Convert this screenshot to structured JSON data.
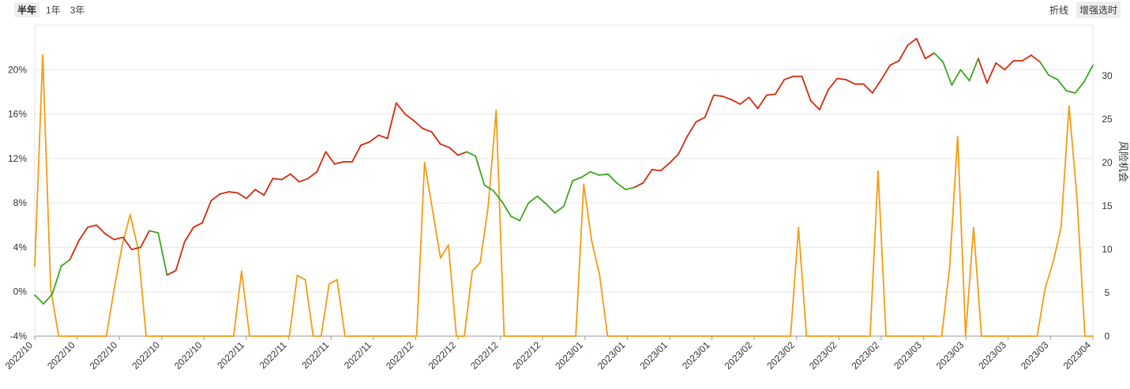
{
  "toolbar": {
    "ranges": [
      "半年",
      "1年",
      "3年"
    ],
    "active_range": "半年",
    "modes": [
      "折线",
      "增强选时"
    ],
    "active_mode": "增强选时"
  },
  "colors": {
    "up": "#d42a0e",
    "down": "#3da51f",
    "opportunity": "#f39c12",
    "grid": "#e6e6e6"
  },
  "chart_data": {
    "type": "line",
    "title": "",
    "xlabel": "",
    "ylabel_left": "",
    "ylabel_right": "风险机会",
    "x_tick_labels": [
      "2022/10",
      "2022/10",
      "2022/10",
      "2022/10",
      "2022/10",
      "2022/11",
      "2022/11",
      "2022/11",
      "2022/11",
      "2022/12",
      "2022/12",
      "2022/12",
      "2022/12",
      "2023/01",
      "2023/01",
      "2023/01",
      "2023/01",
      "2023/02",
      "2023/02",
      "2023/02",
      "2023/02",
      "2023/03",
      "2023/03",
      "2023/03",
      "2023/03",
      "2023/04"
    ],
    "y_left": {
      "ticks": [
        "-4%",
        "0%",
        "4%",
        "8%",
        "12%",
        "16%",
        "20%"
      ],
      "ylim": [
        -4,
        24
      ]
    },
    "y_right": {
      "ticks": [
        "0",
        "5",
        "10",
        "15",
        "20",
        "25",
        "30"
      ],
      "ylim": [
        0,
        35.8
      ]
    },
    "series": [
      {
        "role": "return_pct",
        "points": [
          [
            0,
            -0.3,
            "d"
          ],
          [
            1,
            -1.1,
            "d"
          ],
          [
            2,
            -0.2,
            "d"
          ],
          [
            3,
            2.3,
            "d"
          ],
          [
            4,
            2.9,
            "d"
          ],
          [
            5,
            4.6,
            "u"
          ],
          [
            6,
            5.8,
            "u"
          ],
          [
            7,
            6.0,
            "u"
          ],
          [
            8,
            5.2,
            "u"
          ],
          [
            9,
            4.7,
            "u"
          ],
          [
            10,
            4.9,
            "u"
          ],
          [
            11,
            3.8,
            "u"
          ],
          [
            12,
            4.0,
            "u"
          ],
          [
            13,
            5.5,
            "u"
          ],
          [
            14,
            5.3,
            "d"
          ],
          [
            15,
            1.5,
            "d"
          ],
          [
            16,
            1.9,
            "u"
          ],
          [
            17,
            4.5,
            "u"
          ],
          [
            18,
            5.8,
            "u"
          ],
          [
            19,
            6.2,
            "u"
          ],
          [
            20,
            8.2,
            "u"
          ],
          [
            21,
            8.8,
            "u"
          ],
          [
            22,
            9.0,
            "u"
          ],
          [
            23,
            8.9,
            "u"
          ],
          [
            24,
            8.4,
            "u"
          ],
          [
            25,
            9.2,
            "u"
          ],
          [
            26,
            8.7,
            "u"
          ],
          [
            27,
            10.2,
            "u"
          ],
          [
            28,
            10.1,
            "u"
          ],
          [
            29,
            10.6,
            "u"
          ],
          [
            30,
            9.9,
            "u"
          ],
          [
            31,
            10.2,
            "u"
          ],
          [
            32,
            10.8,
            "u"
          ],
          [
            33,
            12.6,
            "u"
          ],
          [
            34,
            11.5,
            "u"
          ],
          [
            35,
            11.7,
            "u"
          ],
          [
            36,
            11.7,
            "u"
          ],
          [
            37,
            13.2,
            "u"
          ],
          [
            38,
            13.5,
            "u"
          ],
          [
            39,
            14.1,
            "u"
          ],
          [
            40,
            13.8,
            "u"
          ],
          [
            41,
            17.0,
            "u"
          ],
          [
            42,
            16.0,
            "u"
          ],
          [
            43,
            15.4,
            "u"
          ],
          [
            44,
            14.7,
            "u"
          ],
          [
            45,
            14.4,
            "u"
          ],
          [
            46,
            13.3,
            "u"
          ],
          [
            47,
            13.0,
            "u"
          ],
          [
            48,
            12.3,
            "u"
          ],
          [
            49,
            12.6,
            "u"
          ],
          [
            50,
            12.2,
            "d"
          ],
          [
            51,
            9.6,
            "d"
          ],
          [
            52,
            9.1,
            "d"
          ],
          [
            53,
            8.1,
            "d"
          ],
          [
            54,
            6.8,
            "d"
          ],
          [
            55,
            6.4,
            "d"
          ],
          [
            56,
            8.0,
            "d"
          ],
          [
            57,
            8.6,
            "d"
          ],
          [
            58,
            7.9,
            "d"
          ],
          [
            59,
            7.1,
            "d"
          ],
          [
            60,
            7.7,
            "d"
          ],
          [
            61,
            10.0,
            "d"
          ],
          [
            62,
            10.3,
            "d"
          ],
          [
            63,
            10.8,
            "d"
          ],
          [
            64,
            10.5,
            "d"
          ],
          [
            65,
            10.6,
            "d"
          ],
          [
            66,
            9.8,
            "d"
          ],
          [
            67,
            9.2,
            "d"
          ],
          [
            68,
            9.4,
            "d"
          ],
          [
            69,
            9.8,
            "u"
          ],
          [
            70,
            11.0,
            "u"
          ],
          [
            71,
            10.9,
            "u"
          ],
          [
            72,
            11.6,
            "u"
          ],
          [
            73,
            12.4,
            "u"
          ],
          [
            74,
            14.0,
            "u"
          ],
          [
            75,
            15.3,
            "u"
          ],
          [
            76,
            15.7,
            "u"
          ],
          [
            77,
            17.7,
            "u"
          ],
          [
            78,
            17.6,
            "u"
          ],
          [
            79,
            17.3,
            "u"
          ],
          [
            80,
            16.9,
            "u"
          ],
          [
            81,
            17.5,
            "u"
          ],
          [
            82,
            16.5,
            "u"
          ],
          [
            83,
            17.7,
            "u"
          ],
          [
            84,
            17.8,
            "u"
          ],
          [
            85,
            19.1,
            "u"
          ],
          [
            86,
            19.4,
            "u"
          ],
          [
            87,
            19.4,
            "u"
          ],
          [
            88,
            17.2,
            "u"
          ],
          [
            89,
            16.4,
            "u"
          ],
          [
            90,
            18.2,
            "u"
          ],
          [
            91,
            19.2,
            "u"
          ],
          [
            92,
            19.1,
            "u"
          ],
          [
            93,
            18.7,
            "u"
          ],
          [
            94,
            18.7,
            "u"
          ],
          [
            95,
            17.9,
            "u"
          ],
          [
            96,
            19.1,
            "u"
          ],
          [
            97,
            20.4,
            "u"
          ],
          [
            98,
            20.8,
            "u"
          ],
          [
            99,
            22.2,
            "u"
          ],
          [
            100,
            22.8,
            "u"
          ],
          [
            101,
            21.0,
            "u"
          ],
          [
            102,
            21.5,
            "u"
          ],
          [
            103,
            20.7,
            "d"
          ],
          [
            104,
            18.6,
            "d"
          ],
          [
            105,
            20.0,
            "d"
          ],
          [
            106,
            19.0,
            "d"
          ],
          [
            107,
            21.0,
            "d"
          ],
          [
            108,
            18.8,
            "u"
          ],
          [
            109,
            20.6,
            "u"
          ],
          [
            110,
            20.0,
            "u"
          ],
          [
            111,
            20.8,
            "u"
          ],
          [
            112,
            20.8,
            "u"
          ],
          [
            113,
            21.3,
            "u"
          ],
          [
            114,
            20.7,
            "u"
          ],
          [
            115,
            19.5,
            "d"
          ],
          [
            116,
            19.1,
            "d"
          ],
          [
            117,
            18.1,
            "d"
          ],
          [
            118,
            17.9,
            "d"
          ],
          [
            119,
            18.9,
            "d"
          ],
          [
            120,
            20.4,
            "d"
          ]
        ]
      },
      {
        "name": "风险机会",
        "role": "risk_opportunity",
        "points": [
          [
            0,
            8
          ],
          [
            1,
            32.4
          ],
          [
            2,
            5.5
          ],
          [
            3,
            0
          ],
          [
            4,
            0
          ],
          [
            5,
            0
          ],
          [
            6,
            0
          ],
          [
            7,
            0
          ],
          [
            8,
            0
          ],
          [
            9,
            0
          ],
          [
            10,
            5.5
          ],
          [
            11,
            10.5
          ],
          [
            12,
            14
          ],
          [
            13,
            10
          ],
          [
            14,
            0
          ],
          [
            15,
            0
          ],
          [
            16,
            0
          ],
          [
            17,
            0
          ],
          [
            18,
            0
          ],
          [
            19,
            0
          ],
          [
            20,
            0
          ],
          [
            21,
            0
          ],
          [
            22,
            0
          ],
          [
            23,
            0
          ],
          [
            24,
            0
          ],
          [
            25,
            0
          ],
          [
            26,
            7.5
          ],
          [
            27,
            0
          ],
          [
            28,
            0
          ],
          [
            29,
            0
          ],
          [
            30,
            0
          ],
          [
            31,
            0
          ],
          [
            32,
            0
          ],
          [
            33,
            7
          ],
          [
            34,
            6.5
          ],
          [
            35,
            0
          ],
          [
            36,
            0
          ],
          [
            37,
            6
          ],
          [
            38,
            6.5
          ],
          [
            39,
            0
          ],
          [
            40,
            0
          ],
          [
            41,
            0
          ],
          [
            42,
            0
          ],
          [
            43,
            0
          ],
          [
            44,
            0
          ],
          [
            45,
            0
          ],
          [
            46,
            0
          ],
          [
            47,
            0
          ],
          [
            48,
            0
          ],
          [
            49,
            20
          ],
          [
            50,
            14.5
          ],
          [
            51,
            9
          ],
          [
            52,
            10.5
          ],
          [
            53,
            0
          ],
          [
            54,
            0
          ],
          [
            55,
            7.5
          ],
          [
            56,
            8.5
          ],
          [
            57,
            15
          ],
          [
            58,
            26
          ],
          [
            59,
            0
          ],
          [
            60,
            0
          ],
          [
            61,
            0
          ],
          [
            62,
            0
          ],
          [
            63,
            0
          ],
          [
            64,
            0
          ],
          [
            65,
            0
          ],
          [
            66,
            0
          ],
          [
            67,
            0
          ],
          [
            68,
            0
          ],
          [
            69,
            17.5
          ],
          [
            70,
            11
          ],
          [
            71,
            7
          ],
          [
            72,
            0
          ],
          [
            73,
            0
          ],
          [
            74,
            0
          ],
          [
            75,
            0
          ],
          [
            76,
            0
          ],
          [
            77,
            0
          ],
          [
            78,
            0
          ],
          [
            79,
            0
          ],
          [
            80,
            0
          ],
          [
            81,
            0
          ],
          [
            82,
            0
          ],
          [
            83,
            0
          ],
          [
            84,
            0
          ],
          [
            85,
            0
          ],
          [
            86,
            0
          ],
          [
            87,
            0
          ],
          [
            88,
            0
          ],
          [
            89,
            0
          ],
          [
            90,
            0
          ],
          [
            91,
            0
          ],
          [
            92,
            0
          ],
          [
            93,
            0
          ],
          [
            94,
            0
          ],
          [
            95,
            0
          ],
          [
            96,
            12.5
          ],
          [
            97,
            0
          ],
          [
            98,
            0
          ],
          [
            99,
            0
          ],
          [
            100,
            0
          ],
          [
            101,
            0
          ],
          [
            102,
            0
          ],
          [
            103,
            0
          ],
          [
            104,
            0
          ],
          [
            105,
            0
          ],
          [
            106,
            19
          ],
          [
            107,
            0
          ],
          [
            108,
            0
          ],
          [
            109,
            0
          ],
          [
            110,
            0
          ],
          [
            111,
            0
          ],
          [
            112,
            0
          ],
          [
            113,
            0
          ],
          [
            114,
            0
          ],
          [
            115,
            8
          ],
          [
            116,
            23
          ],
          [
            117,
            0
          ],
          [
            118,
            12.5
          ],
          [
            119,
            0
          ],
          [
            120,
            0
          ],
          [
            121,
            0
          ],
          [
            122,
            0
          ],
          [
            123,
            0
          ],
          [
            124,
            0
          ],
          [
            125,
            0
          ],
          [
            126,
            0
          ],
          [
            127,
            5.5
          ],
          [
            128,
            8.5
          ],
          [
            129,
            12.5
          ],
          [
            130,
            26.5
          ],
          [
            131,
            16
          ],
          [
            132,
            0
          ],
          [
            133,
            0
          ]
        ]
      }
    ]
  }
}
